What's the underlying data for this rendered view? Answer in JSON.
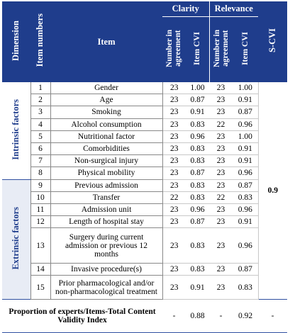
{
  "headers": {
    "dimension": "Dimension",
    "item_numbers": "Item numbers",
    "item": "Item",
    "clarity": "Clarity",
    "relevance": "Relevance",
    "number_in_agreement": "Number in agreement",
    "item_cvi": "Item CVI",
    "scvi": "S-CVI"
  },
  "dimensions": {
    "intrinsic": "Intrinsic factors",
    "extrinsic": "Extrinsic factors"
  },
  "rows": [
    {
      "n": "1",
      "item": "Gender",
      "ca": "23",
      "ci": "1.00",
      "ra": "23",
      "ri": "1.00"
    },
    {
      "n": "2",
      "item": "Age",
      "ca": "23",
      "ci": "0.87",
      "ra": "23",
      "ri": "0.91"
    },
    {
      "n": "3",
      "item": "Smoking",
      "ca": "23",
      "ci": "0.91",
      "ra": "23",
      "ri": "0.87"
    },
    {
      "n": "4",
      "item": "Alcohol consumption",
      "ca": "23",
      "ci": "0.83",
      "ra": "22",
      "ri": "0.96"
    },
    {
      "n": "5",
      "item": "Nutritional factor",
      "ca": "23",
      "ci": "0.96",
      "ra": "23",
      "ri": "1.00"
    },
    {
      "n": "6",
      "item": "Comorbidities",
      "ca": "23",
      "ci": "0.83",
      "ra": "23",
      "ri": "0.91"
    },
    {
      "n": "7",
      "item": "Non-surgical injury",
      "ca": "23",
      "ci": "0.83",
      "ra": "23",
      "ri": "0.91"
    },
    {
      "n": "8",
      "item": "Physical mobility",
      "ca": "23",
      "ci": "0.87",
      "ra": "23",
      "ri": "0.96"
    },
    {
      "n": "9",
      "item": "Previous admission",
      "ca": "23",
      "ci": "0.83",
      "ra": "23",
      "ri": "0.87"
    },
    {
      "n": "10",
      "item": "Transfer",
      "ca": "22",
      "ci": "0.83",
      "ra": "22",
      "ri": "0.83"
    },
    {
      "n": "11",
      "item": "Admission unit",
      "ca": "23",
      "ci": "0.96",
      "ra": "23",
      "ri": "0.96"
    },
    {
      "n": "12",
      "item": "Length of hospital stay",
      "ca": "23",
      "ci": "0.87",
      "ra": "23",
      "ri": "0.91"
    },
    {
      "n": "13",
      "item": "Surgery during current admission or previous 12 months",
      "ca": "23",
      "ci": "0.83",
      "ra": "23",
      "ri": "0.96"
    },
    {
      "n": "14",
      "item": "Invasive procedure(s)",
      "ca": "23",
      "ci": "0.83",
      "ra": "23",
      "ri": "0.87"
    },
    {
      "n": "15",
      "item": "Prior pharmacological and/or non-pharmacological treatment",
      "ca": "23",
      "ci": "0.91",
      "ra": "23",
      "ri": "0.83"
    }
  ],
  "scvi_value": "0.9",
  "proportion": {
    "label": "Proportion of experts/Items-Total Content Validity Index",
    "ca": "-",
    "ci": "0.88",
    "ra": "-",
    "ri": "0.92",
    "scvi": "-"
  }
}
